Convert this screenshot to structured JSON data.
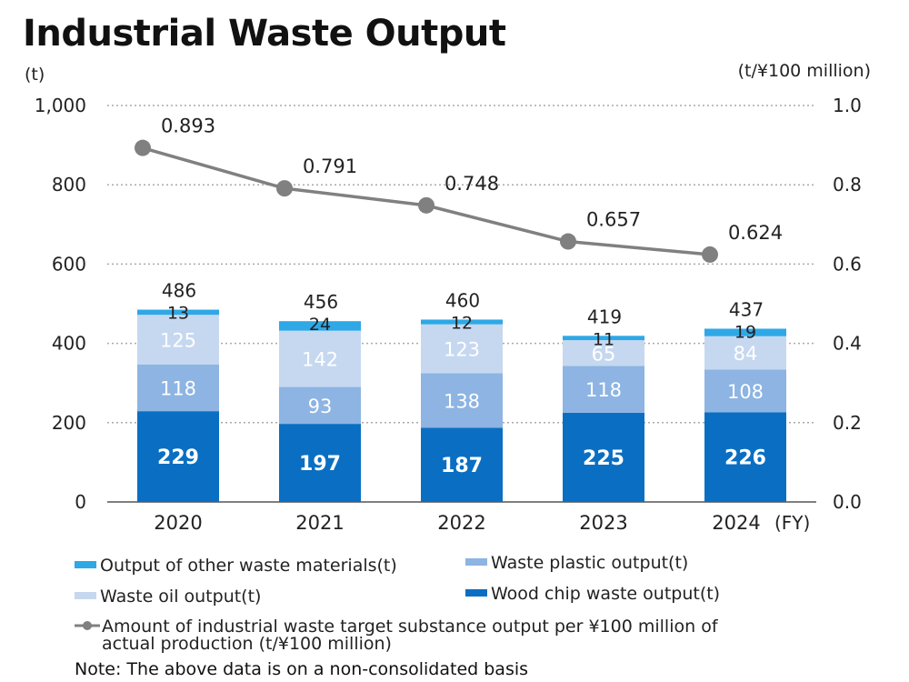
{
  "title": "Industrial Waste Output",
  "left_axis_unit": "(t)",
  "right_axis_unit": "(t/¥100 million)",
  "fy_label": "(FY)",
  "note": "Note: The above data is on a non-consolidated basis",
  "colors": {
    "wood": "#0a6fc2",
    "plastic": "#8db4e2",
    "oil": "#c6d8f0",
    "other": "#2ea8e6",
    "line": "#808080"
  },
  "legend": {
    "other": "Output of other waste materials(t)",
    "plastic": "Waste plastic output(t)",
    "oil": "Waste oil output(t)",
    "wood": "Wood chip waste output(t)",
    "line_1": "Amount of industrial waste target substance output per ¥100 million of",
    "line_2": "actual production (t/¥100 million)"
  },
  "chart_data": {
    "type": "bar",
    "stacked": true,
    "categories": [
      "2020",
      "2021",
      "2022",
      "2023",
      "2024"
    ],
    "series": [
      {
        "name": "Wood chip waste output(t)",
        "values": [
          229,
          197,
          187,
          225,
          226
        ]
      },
      {
        "name": "Waste plastic output(t)",
        "values": [
          118,
          93,
          138,
          118,
          108
        ]
      },
      {
        "name": "Waste oil output(t)",
        "values": [
          125,
          142,
          123,
          65,
          84
        ]
      },
      {
        "name": "Output of other waste materials(t)",
        "values": [
          13,
          24,
          12,
          11,
          19
        ]
      }
    ],
    "totals": [
      486,
      456,
      460,
      419,
      437
    ],
    "line_series": {
      "name": "Amount of industrial waste target substance output per ¥100 million of actual production (t/¥100 million)",
      "values": [
        0.893,
        0.791,
        0.748,
        0.657,
        0.624
      ],
      "labels": [
        "0.893",
        "0.791",
        "0.748",
        "0.657",
        "0.624"
      ]
    },
    "ylim_left": [
      0,
      1000
    ],
    "ylim_right": [
      0,
      1.0
    ],
    "left_ticks": [
      "0",
      "200",
      "400",
      "600",
      "800",
      "1,000"
    ],
    "right_ticks": [
      "0.0",
      "0.2",
      "0.4",
      "0.6",
      "0.8",
      "1.0"
    ],
    "grid": true
  }
}
